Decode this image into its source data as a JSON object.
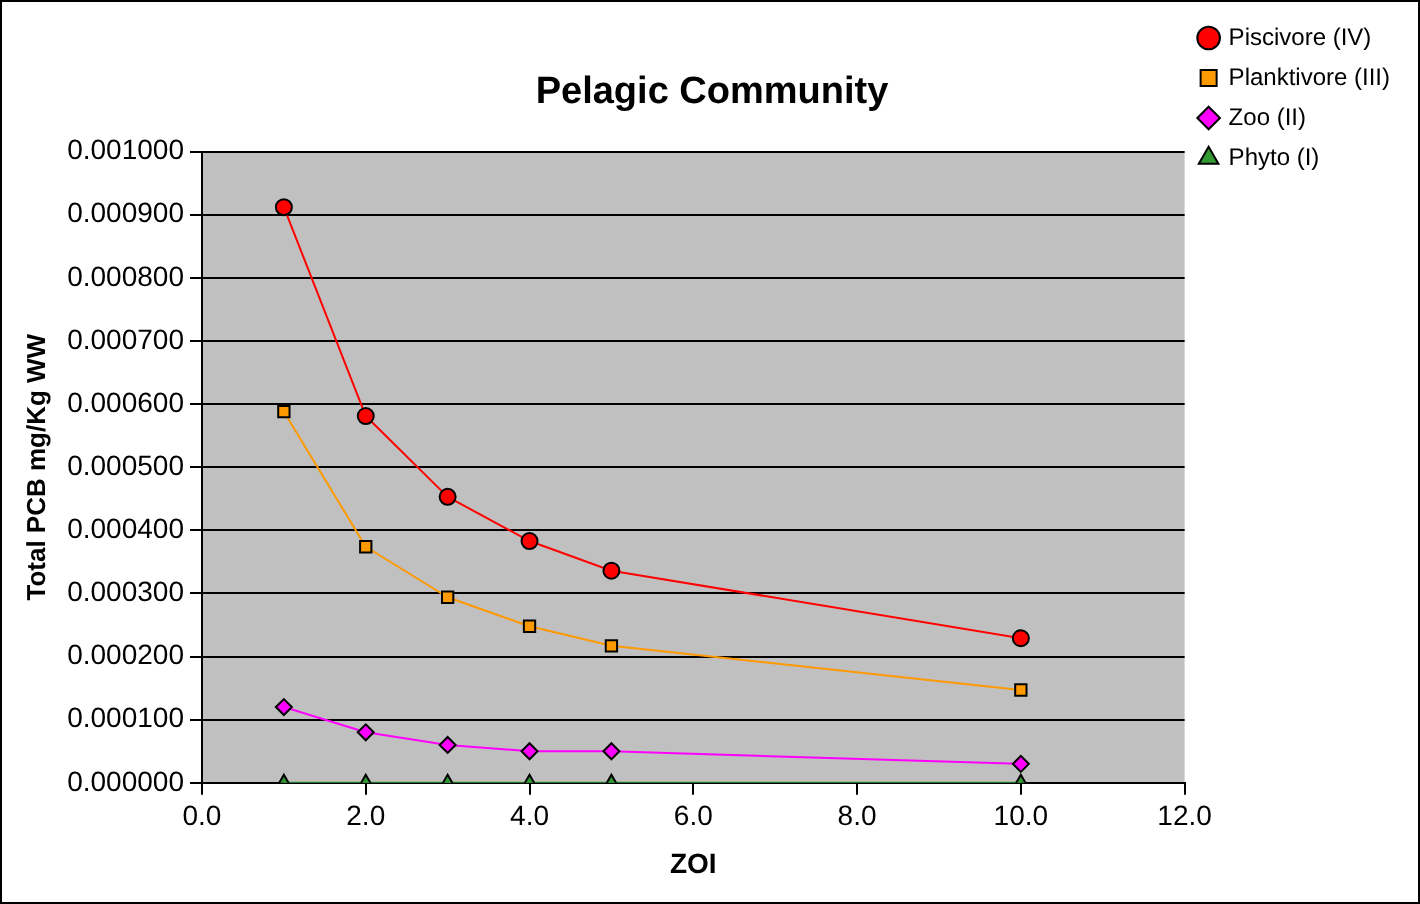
{
  "chart_data": {
    "type": "line",
    "title": "Pelagic Community",
    "xlabel": "ZOI",
    "ylabel": "Total PCB mg/Kg WW",
    "x": [
      1,
      2,
      3,
      4,
      5,
      10
    ],
    "series": [
      {
        "name": "Piscivore (IV)",
        "color": "#ff0000",
        "marker": "circle",
        "values": [
          0.000912,
          0.000581,
          0.000453,
          0.000383,
          0.000336,
          0.000229
        ]
      },
      {
        "name": "Planktivore (III)",
        "color": "#ff9900",
        "marker": "square",
        "values": [
          0.000588,
          0.000374,
          0.000294,
          0.000248,
          0.000217,
          0.000147
        ]
      },
      {
        "name": "Zoo (II)",
        "color": "#ff00ff",
        "marker": "diamond",
        "values": [
          0.00012,
          8e-05,
          6e-05,
          5e-05,
          5e-05,
          3e-05
        ]
      },
      {
        "name": "Phyto (I)",
        "color": "#339933",
        "marker": "triangle",
        "values": [
          0,
          0,
          0,
          0,
          0,
          0
        ]
      }
    ],
    "xlim": [
      0,
      12
    ],
    "xticks": [
      {
        "value": 0,
        "label": "0.0"
      },
      {
        "value": 2,
        "label": "2.0"
      },
      {
        "value": 4,
        "label": "4.0"
      },
      {
        "value": 6,
        "label": "6.0"
      },
      {
        "value": 8,
        "label": "8.0"
      },
      {
        "value": 10,
        "label": "10.0"
      },
      {
        "value": 12,
        "label": "12.0"
      }
    ],
    "ylim": [
      0,
      0.001
    ],
    "yticks": [
      {
        "value": 0,
        "label": "0.000000"
      },
      {
        "value": 0.0001,
        "label": "0.000100"
      },
      {
        "value": 0.0002,
        "label": "0.000200"
      },
      {
        "value": 0.0003,
        "label": "0.000300"
      },
      {
        "value": 0.0004,
        "label": "0.000400"
      },
      {
        "value": 0.0005,
        "label": "0.000500"
      },
      {
        "value": 0.0006,
        "label": "0.000600"
      },
      {
        "value": 0.0007,
        "label": "0.000700"
      },
      {
        "value": 0.0008,
        "label": "0.000800"
      },
      {
        "value": 0.0009,
        "label": "0.000900"
      },
      {
        "value": 0.001,
        "label": "0.001000"
      }
    ],
    "grid": "y",
    "legend": "top right",
    "line_style": "solid"
  }
}
